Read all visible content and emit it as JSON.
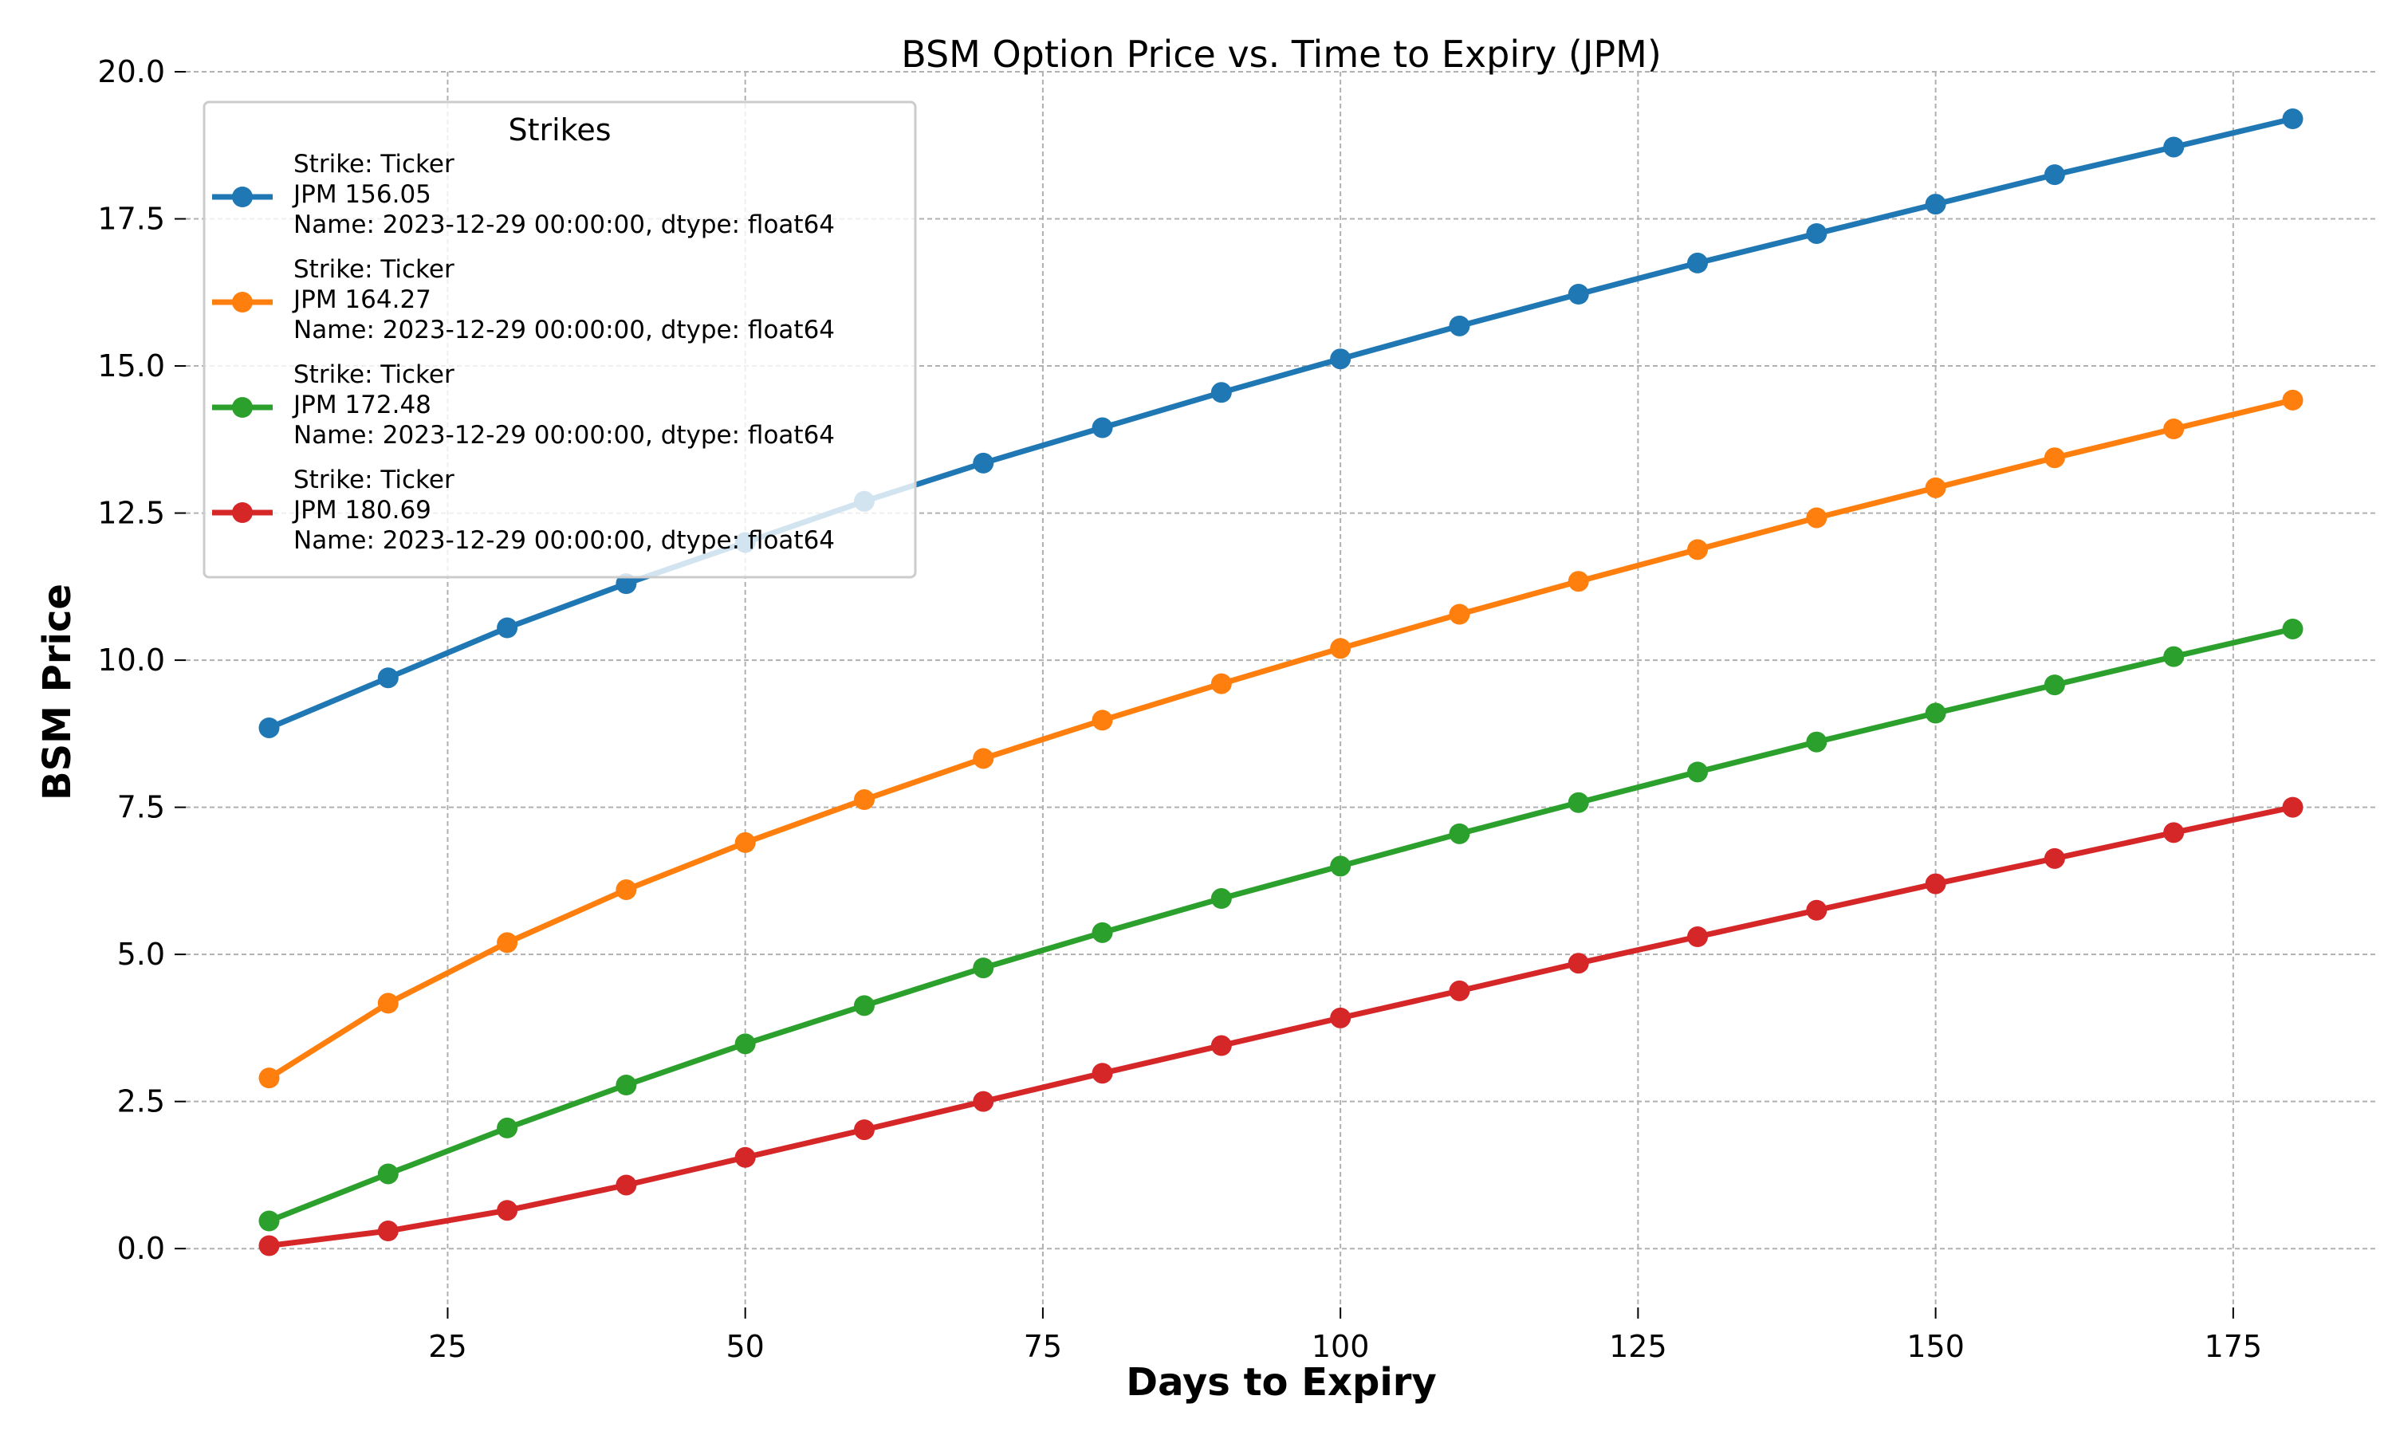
{
  "chart_data": {
    "type": "line",
    "title": "BSM Option Price vs. Time to Expiry (JPM)",
    "xlabel": "Days to Expiry",
    "ylabel": "BSM Price",
    "xlim": [
      3,
      187
    ],
    "ylim": [
      -1.0,
      20.0
    ],
    "x_ticks": [
      25,
      50,
      75,
      100,
      125,
      150,
      175
    ],
    "x_tick_labels": [
      "25",
      "50",
      "75",
      "100",
      "125",
      "150",
      "175"
    ],
    "y_ticks": [
      0,
      2.5,
      5,
      7.5,
      10,
      12.5,
      15,
      17.5,
      20
    ],
    "y_tick_labels": [
      "0.0",
      "2.5",
      "5.0",
      "7.5",
      "10.0",
      "12.5",
      "15.0",
      "17.5",
      "20.0"
    ],
    "grid": true,
    "legend": {
      "title": "Strikes",
      "placement": "upper-left"
    },
    "x": [
      10,
      20,
      30,
      40,
      50,
      60,
      70,
      80,
      90,
      100,
      110,
      120,
      130,
      140,
      150,
      160,
      170,
      180
    ],
    "series": [
      {
        "name": "Strike: Ticker\nJPM    156.05\nName: 2023-12-29 00:00:00, dtype: float64",
        "name_lines": [
          "Strike: Ticker",
          "JPM    156.05",
          "Name: 2023-12-29 00:00:00, dtype: float64"
        ],
        "color": "#1f77b4",
        "values": [
          8.85,
          9.7,
          10.55,
          11.3,
          12.0,
          12.7,
          13.35,
          13.95,
          14.55,
          15.12,
          15.68,
          16.22,
          16.75,
          17.25,
          17.75,
          18.25,
          18.72,
          19.2
        ]
      },
      {
        "name": "Strike: Ticker\nJPM    164.27\nName: 2023-12-29 00:00:00, dtype: float64",
        "name_lines": [
          "Strike: Ticker",
          "JPM    164.27",
          "Name: 2023-12-29 00:00:00, dtype: float64"
        ],
        "color": "#ff7f0e",
        "values": [
          2.9,
          4.17,
          5.2,
          6.1,
          6.9,
          7.63,
          8.33,
          8.98,
          9.6,
          10.2,
          10.78,
          11.34,
          11.88,
          12.42,
          12.93,
          13.44,
          13.93,
          14.42
        ]
      },
      {
        "name": "Strike: Ticker\nJPM    172.48\nName: 2023-12-29 00:00:00, dtype: float64",
        "name_lines": [
          "Strike: Ticker",
          "JPM    172.48",
          "Name: 2023-12-29 00:00:00, dtype: float64"
        ],
        "color": "#2ca02c",
        "values": [
          0.47,
          1.27,
          2.05,
          2.78,
          3.48,
          4.13,
          4.77,
          5.37,
          5.95,
          6.5,
          7.05,
          7.58,
          8.1,
          8.61,
          9.1,
          9.58,
          10.06,
          10.53
        ]
      },
      {
        "name": "Strike: Ticker\nJPM    180.69\nName: 2023-12-29 00:00:00, dtype: float64",
        "name_lines": [
          "Strike: Ticker",
          "JPM    180.69",
          "Name: 2023-12-29 00:00:00, dtype: float64"
        ],
        "color": "#d62728",
        "values": [
          0.05,
          0.3,
          0.65,
          1.08,
          1.55,
          2.02,
          2.5,
          2.98,
          3.45,
          3.92,
          4.38,
          4.85,
          5.3,
          5.75,
          6.2,
          6.63,
          7.07,
          7.5
        ]
      }
    ]
  },
  "colors": {
    "grid": "#b0b0b0",
    "legend_border": "#cccccc",
    "background": "#ffffff"
  }
}
